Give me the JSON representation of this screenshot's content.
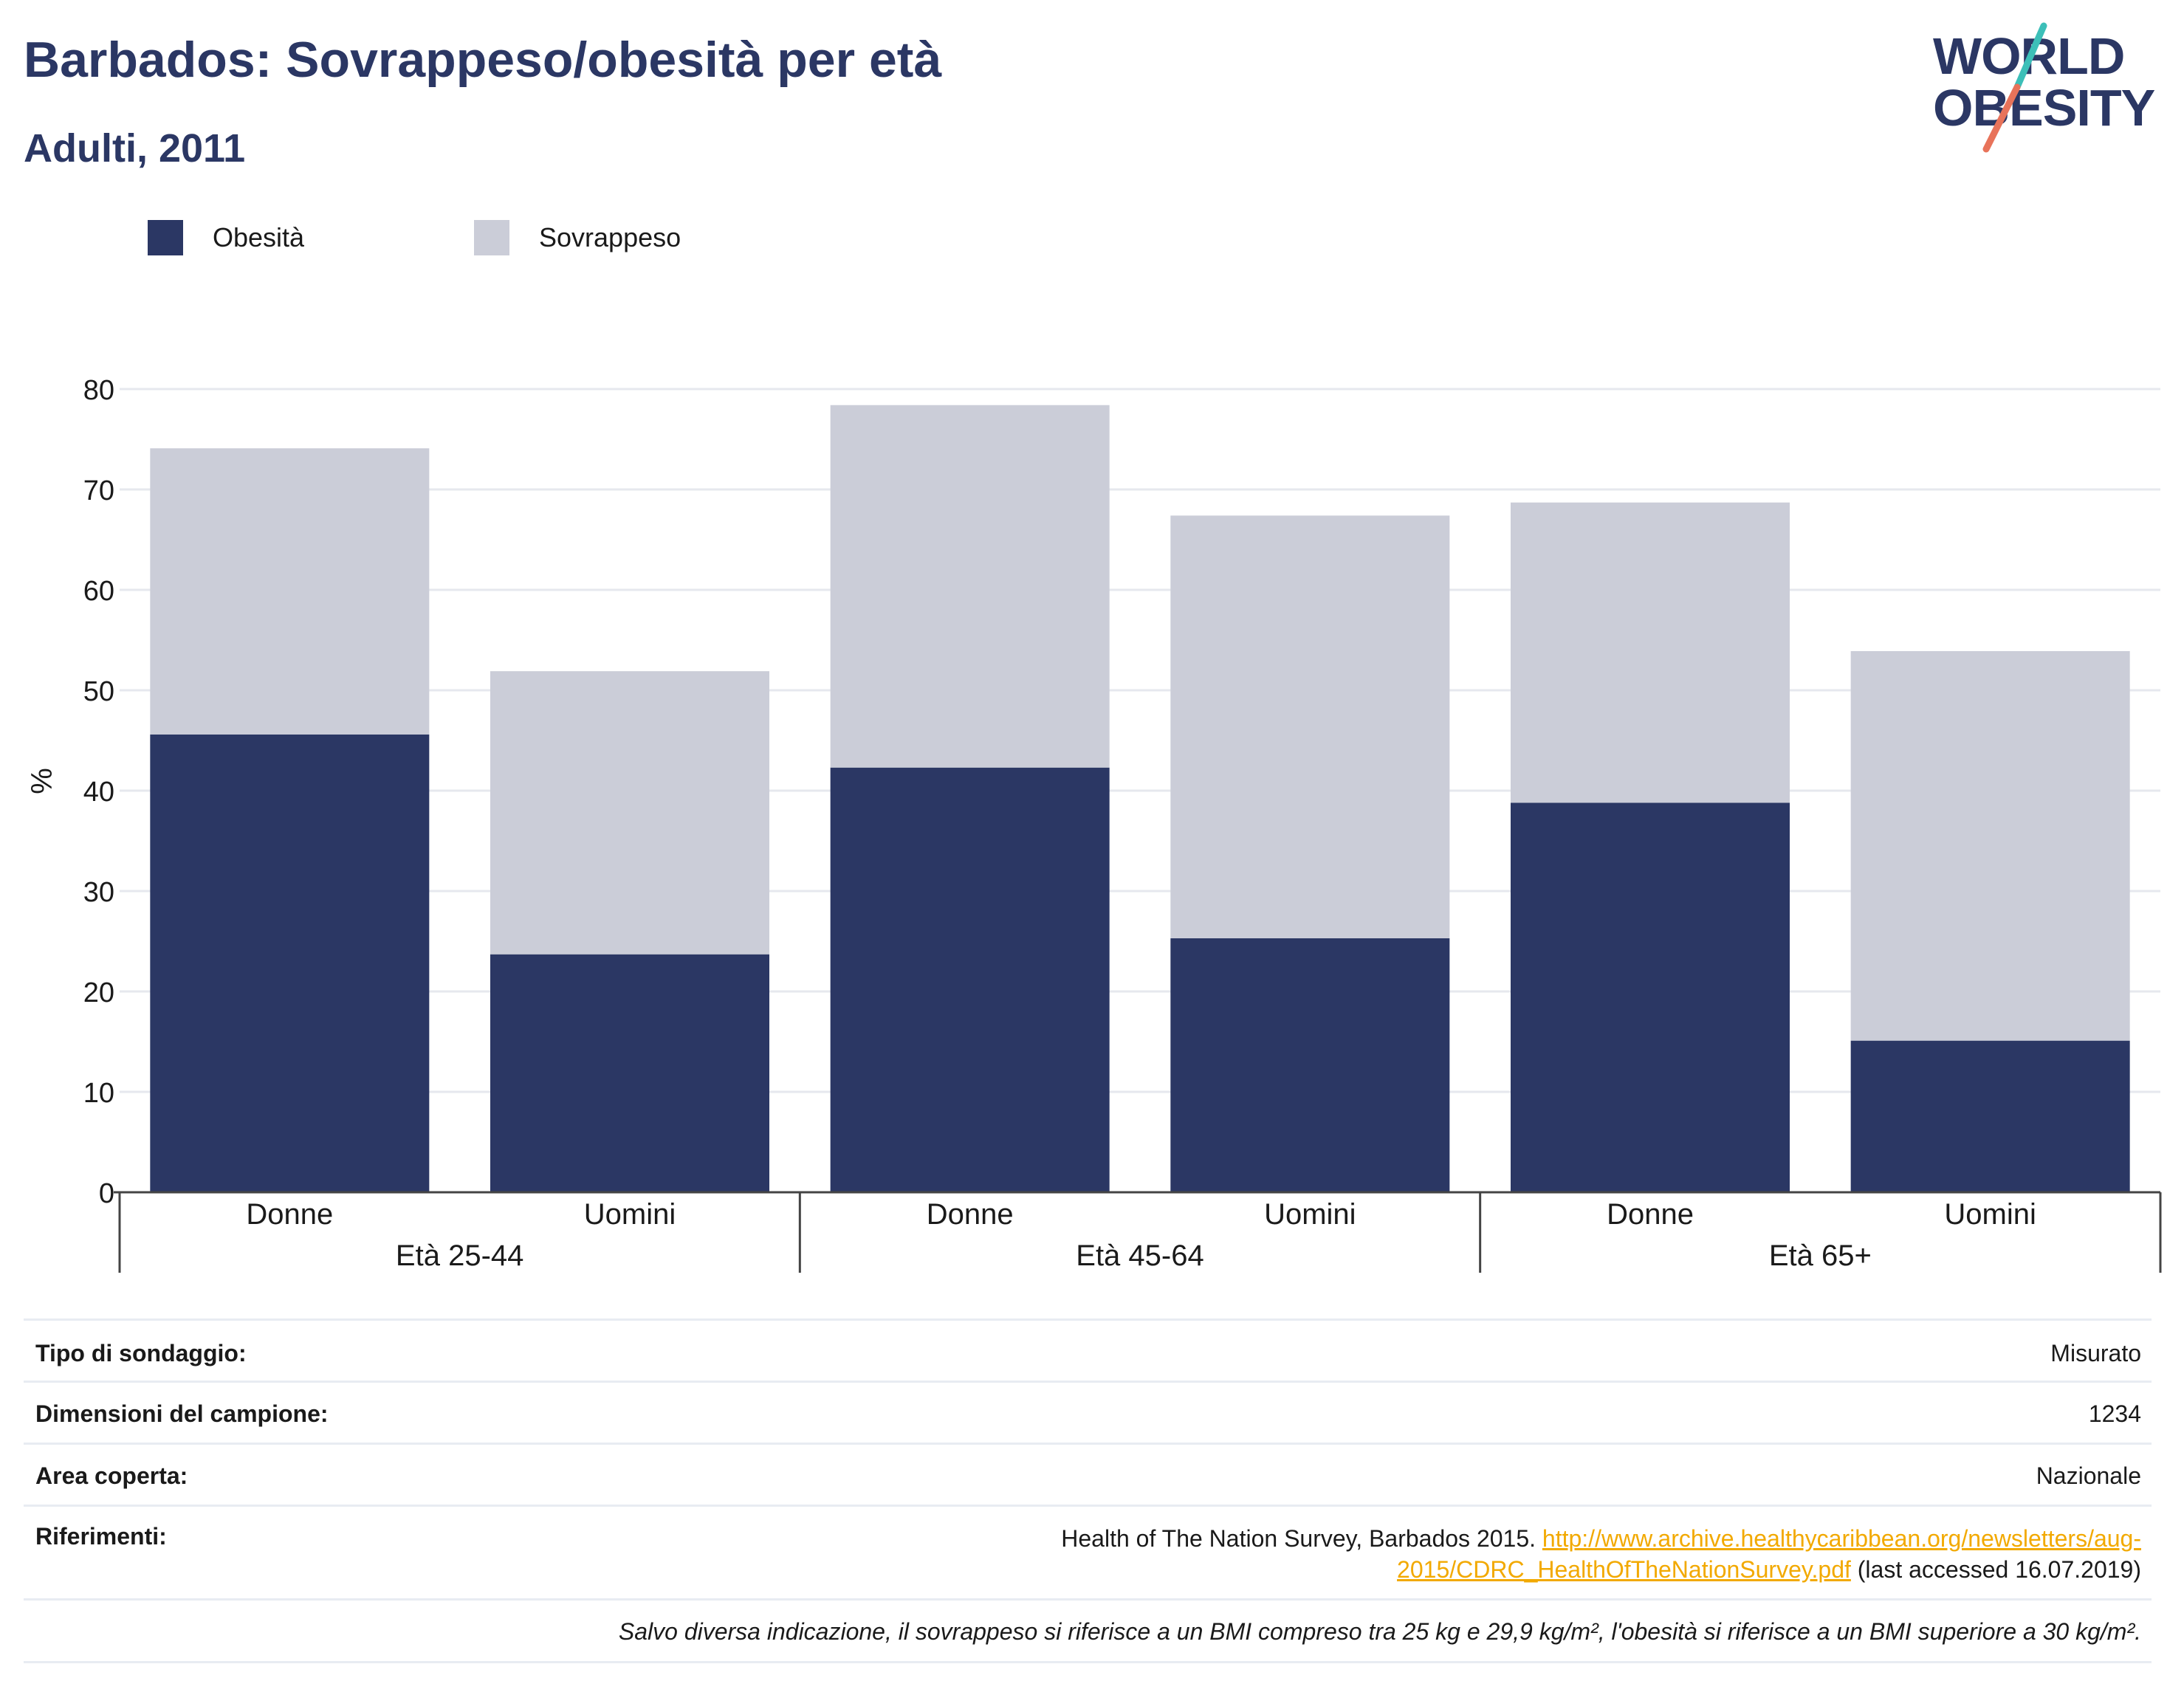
{
  "header": {
    "title": "Barbados: Sovrappeso/obesità per età",
    "subtitle": "Adulti, 2011"
  },
  "logo": {
    "line1": "WORLD",
    "line2": "OBESITY"
  },
  "colors": {
    "obesity": "#2b3764",
    "overweight": "#cbcdd8",
    "brand_text": "#2b3764",
    "slash_teal": "#3cbfb8",
    "slash_coral": "#e8735a",
    "link": "#f2a900"
  },
  "legend": [
    {
      "label": "Obesità",
      "color": "#2b3764"
    },
    {
      "label": "Sovrappeso",
      "color": "#cbcdd8"
    }
  ],
  "chart_data": {
    "type": "bar",
    "stacked": true,
    "ylabel": "%",
    "ylim": [
      0,
      80
    ],
    "yticks": [
      0,
      10,
      20,
      30,
      40,
      50,
      60,
      70,
      80
    ],
    "grid": true,
    "legend_position": "top-left",
    "groups": [
      {
        "label": "Età 25-44",
        "categories": [
          "Donne",
          "Uomini"
        ]
      },
      {
        "label": "Età 45-64",
        "categories": [
          "Donne",
          "Uomini"
        ]
      },
      {
        "label": "Età 65+",
        "categories": [
          "Donne",
          "Uomini"
        ]
      }
    ],
    "categories": [
      "Donne",
      "Uomini",
      "Donne",
      "Uomini",
      "Donne",
      "Uomini"
    ],
    "series": [
      {
        "name": "Obesità",
        "values": [
          45.6,
          23.7,
          42.3,
          25.3,
          38.8,
          15.1
        ]
      },
      {
        "name": "Sovrappeso",
        "values": [
          28.5,
          28.2,
          36.1,
          42.1,
          29.9,
          38.8
        ]
      }
    ]
  },
  "info": {
    "survey_type": {
      "label": "Tipo di sondaggio:",
      "value": "Misurato"
    },
    "sample_size": {
      "label": "Dimensioni del campione:",
      "value": "1234"
    },
    "area": {
      "label": "Area coperta:",
      "value": "Nazionale"
    },
    "references": {
      "label": "Riferimenti:",
      "text": "Health of The Nation Survey, Barbados 2015.",
      "link1": "http://www.archive.healthycaribbean.org/newsletters/aug-",
      "link2": "2015/CDRC_HealthOfTheNationSurvey.pdf",
      "suffix": "(last accessed 16.07.2019)"
    },
    "note": "Salvo diversa indicazione, il sovrappeso si riferisce a un BMI compreso tra 25 kg e 29,9 kg/m², l'obesità si riferisce a un BMI superiore a 30 kg/m²."
  }
}
